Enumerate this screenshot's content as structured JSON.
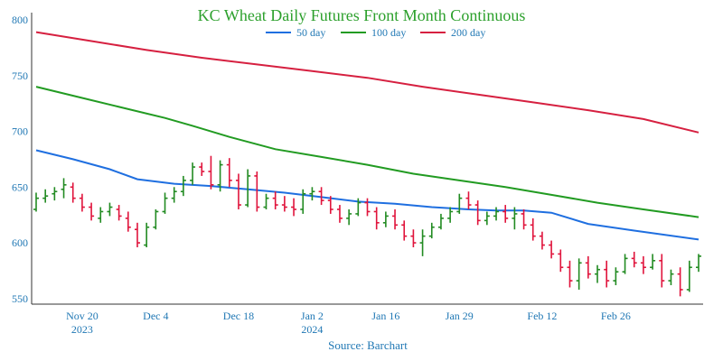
{
  "chart_data": {
    "type": "line",
    "title": "KC Wheat Daily Futures Front Month Continuous",
    "source": "Source: Barchart",
    "ylim": [
      545,
      800
    ],
    "yticks": [
      550,
      600,
      650,
      700,
      750,
      800
    ],
    "xlim": [
      0,
      72
    ],
    "xticks": [
      {
        "x": 5,
        "label": "Nov 20",
        "sublabel": "2023"
      },
      {
        "x": 13,
        "label": "Dec 4",
        "sublabel": ""
      },
      {
        "x": 22,
        "label": "Dec 18",
        "sublabel": ""
      },
      {
        "x": 30,
        "label": "Jan 2",
        "sublabel": "2024"
      },
      {
        "x": 38,
        "label": "Jan 16",
        "sublabel": ""
      },
      {
        "x": 46,
        "label": "Jan 29",
        "sublabel": ""
      },
      {
        "x": 55,
        "label": "Feb 12",
        "sublabel": ""
      },
      {
        "x": 63,
        "label": "Feb 26",
        "sublabel": ""
      }
    ],
    "grid": false,
    "legend_position": "top",
    "colors": {
      "up": "#228b22",
      "down": "#e0143c",
      "ma50": "#1f6fe0",
      "ma100": "#229b22",
      "ma200": "#d62040"
    },
    "series": [
      {
        "name": "50 day",
        "color": "#1f6fe0",
        "points": [
          [
            0,
            683
          ],
          [
            4,
            675
          ],
          [
            8,
            666
          ],
          [
            11,
            657
          ],
          [
            15,
            653
          ],
          [
            19,
            651
          ],
          [
            23,
            648
          ],
          [
            27,
            645
          ],
          [
            31,
            641
          ],
          [
            35,
            637
          ],
          [
            39,
            635
          ],
          [
            43,
            632
          ],
          [
            47,
            630
          ],
          [
            50,
            629
          ],
          [
            53,
            629
          ],
          [
            56,
            627
          ],
          [
            60,
            617
          ],
          [
            65,
            611
          ],
          [
            72,
            603
          ]
        ]
      },
      {
        "name": "100 day",
        "color": "#229b22",
        "points": [
          [
            0,
            740
          ],
          [
            5,
            730
          ],
          [
            9,
            722
          ],
          [
            14,
            712
          ],
          [
            17,
            705
          ],
          [
            21,
            695
          ],
          [
            26,
            684
          ],
          [
            31,
            677
          ],
          [
            36,
            670
          ],
          [
            41,
            662
          ],
          [
            46,
            656
          ],
          [
            51,
            650
          ],
          [
            56,
            643
          ],
          [
            61,
            636
          ],
          [
            66,
            630
          ],
          [
            72,
            623
          ]
        ]
      },
      {
        "name": "200 day",
        "color": "#d62040",
        "points": [
          [
            0,
            789
          ],
          [
            6,
            781
          ],
          [
            12,
            773
          ],
          [
            18,
            766
          ],
          [
            24,
            760
          ],
          [
            30,
            754
          ],
          [
            36,
            748
          ],
          [
            42,
            740
          ],
          [
            48,
            733
          ],
          [
            54,
            726
          ],
          [
            60,
            719
          ],
          [
            66,
            711
          ],
          [
            72,
            699
          ]
        ]
      }
    ],
    "ohlc": [
      [
        0,
        630,
        645,
        628,
        640
      ],
      [
        1,
        640,
        648,
        636,
        642
      ],
      [
        2,
        644,
        650,
        638,
        646
      ],
      [
        3,
        648,
        658,
        640,
        652
      ],
      [
        4,
        650,
        654,
        636,
        640
      ],
      [
        5,
        640,
        644,
        628,
        632
      ],
      [
        6,
        632,
        636,
        620,
        624
      ],
      [
        7,
        622,
        632,
        618,
        628
      ],
      [
        8,
        628,
        636,
        624,
        632
      ],
      [
        9,
        630,
        634,
        620,
        624
      ],
      [
        10,
        622,
        628,
        610,
        614
      ],
      [
        11,
        612,
        618,
        596,
        600
      ],
      [
        12,
        598,
        618,
        596,
        614
      ],
      [
        13,
        614,
        630,
        612,
        628
      ],
      [
        14,
        628,
        645,
        626,
        640
      ],
      [
        15,
        640,
        650,
        636,
        646
      ],
      [
        16,
        646,
        660,
        642,
        656
      ],
      [
        17,
        656,
        672,
        652,
        668
      ],
      [
        18,
        668,
        672,
        660,
        664
      ],
      [
        19,
        664,
        678,
        648,
        652
      ],
      [
        20,
        652,
        674,
        646,
        670
      ],
      [
        21,
        670,
        676,
        650,
        656
      ],
      [
        22,
        656,
        662,
        630,
        634
      ],
      [
        23,
        634,
        666,
        632,
        660
      ],
      [
        24,
        660,
        664,
        628,
        632
      ],
      [
        25,
        632,
        644,
        630,
        640
      ],
      [
        26,
        640,
        646,
        630,
        634
      ],
      [
        27,
        634,
        642,
        628,
        632
      ],
      [
        28,
        632,
        640,
        624,
        630
      ],
      [
        29,
        630,
        648,
        626,
        644
      ],
      [
        30,
        644,
        650,
        638,
        646
      ],
      [
        31,
        646,
        650,
        634,
        638
      ],
      [
        32,
        638,
        642,
        626,
        630
      ],
      [
        33,
        630,
        634,
        618,
        622
      ],
      [
        34,
        622,
        630,
        616,
        626
      ],
      [
        35,
        626,
        640,
        624,
        636
      ],
      [
        36,
        636,
        640,
        624,
        628
      ],
      [
        37,
        628,
        632,
        612,
        618
      ],
      [
        38,
        618,
        628,
        614,
        624
      ],
      [
        39,
        624,
        630,
        612,
        616
      ],
      [
        40,
        616,
        620,
        602,
        606
      ],
      [
        41,
        606,
        612,
        596,
        600
      ],
      [
        42,
        600,
        612,
        588,
        606
      ],
      [
        43,
        606,
        618,
        604,
        614
      ],
      [
        44,
        614,
        626,
        612,
        622
      ],
      [
        45,
        622,
        632,
        618,
        628
      ],
      [
        46,
        628,
        644,
        626,
        640
      ],
      [
        47,
        640,
        646,
        630,
        634
      ],
      [
        48,
        634,
        638,
        616,
        620
      ],
      [
        49,
        620,
        628,
        616,
        624
      ],
      [
        50,
        624,
        632,
        620,
        628
      ],
      [
        51,
        628,
        634,
        618,
        622
      ],
      [
        52,
        622,
        632,
        612,
        626
      ],
      [
        53,
        626,
        630,
        612,
        616
      ],
      [
        54,
        616,
        622,
        602,
        606
      ],
      [
        55,
        606,
        610,
        594,
        598
      ],
      [
        56,
        598,
        602,
        586,
        590
      ],
      [
        57,
        590,
        594,
        574,
        578
      ],
      [
        58,
        578,
        584,
        560,
        566
      ],
      [
        59,
        566,
        586,
        558,
        582
      ],
      [
        60,
        582,
        588,
        568,
        572
      ],
      [
        61,
        572,
        580,
        564,
        576
      ],
      [
        62,
        576,
        584,
        560,
        566
      ],
      [
        63,
        566,
        578,
        562,
        574
      ],
      [
        64,
        574,
        590,
        572,
        586
      ],
      [
        65,
        586,
        592,
        578,
        582
      ],
      [
        66,
        582,
        588,
        572,
        578
      ],
      [
        67,
        578,
        590,
        576,
        584
      ],
      [
        68,
        584,
        590,
        560,
        566
      ],
      [
        69,
        566,
        576,
        562,
        572
      ],
      [
        70,
        572,
        578,
        552,
        558
      ],
      [
        71,
        558,
        584,
        556,
        578
      ],
      [
        72,
        578,
        590,
        574,
        588
      ]
    ]
  }
}
